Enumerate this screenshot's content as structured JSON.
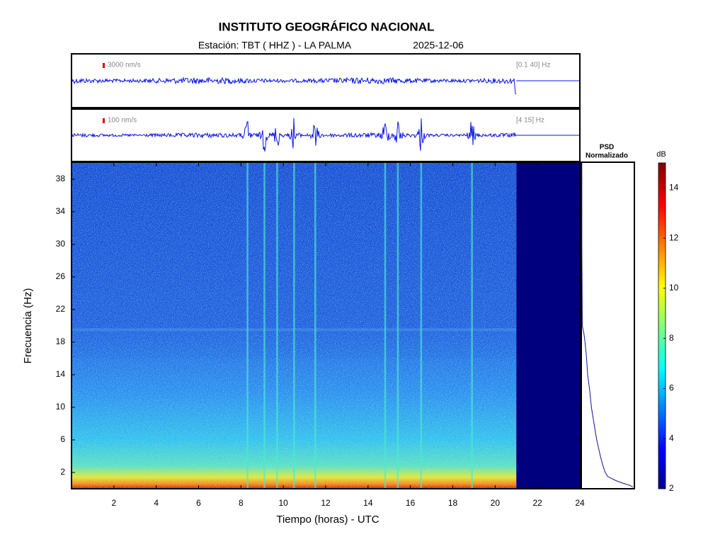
{
  "chart_data": {
    "type": "spectrogram",
    "title": "INSTITUTO GEOGRÁFICO NACIONAL",
    "station": "Estación:  TBT ( HHZ ) - LA PALMA",
    "date": "2025-12-06",
    "traces": [
      {
        "scale": "3000 nm/s",
        "band": "[0.1 40] Hz"
      },
      {
        "scale": "100 nm/s",
        "band": "[4 15] Hz"
      }
    ],
    "xlabel": "Tiempo (horas) - UTC",
    "ylabel": "Frecuencia  (Hz)",
    "xlim": [
      0,
      24
    ],
    "xticks": [
      2,
      4,
      6,
      8,
      10,
      12,
      14,
      16,
      18,
      20,
      22,
      24
    ],
    "ylim": [
      0,
      40
    ],
    "yticks": [
      2,
      6,
      10,
      14,
      18,
      22,
      26,
      30,
      34,
      38
    ],
    "data_end": 21,
    "events": [
      8.3,
      9.1,
      9.7,
      10.5,
      11.5,
      14.8,
      15.4,
      16.5,
      18.9
    ],
    "psd_title": [
      "PSD",
      "Normalizado"
    ],
    "psd": {
      "xlim": [
        0,
        1
      ],
      "freq": [
        40,
        30,
        20,
        19,
        18,
        16,
        14,
        12,
        10,
        8,
        6,
        4,
        3,
        2,
        1.5,
        1,
        0.7,
        0.4,
        0.2
      ],
      "values": [
        0.01,
        0.01,
        0.02,
        0.05,
        0.07,
        0.1,
        0.12,
        0.16,
        0.19,
        0.24,
        0.29,
        0.36,
        0.4,
        0.45,
        0.5,
        0.65,
        0.78,
        0.92,
        0.97
      ]
    },
    "colorbar": {
      "label": "dB",
      "clim": [
        2,
        15
      ],
      "ticks": [
        2,
        4,
        6,
        8,
        10,
        12,
        14
      ]
    }
  }
}
